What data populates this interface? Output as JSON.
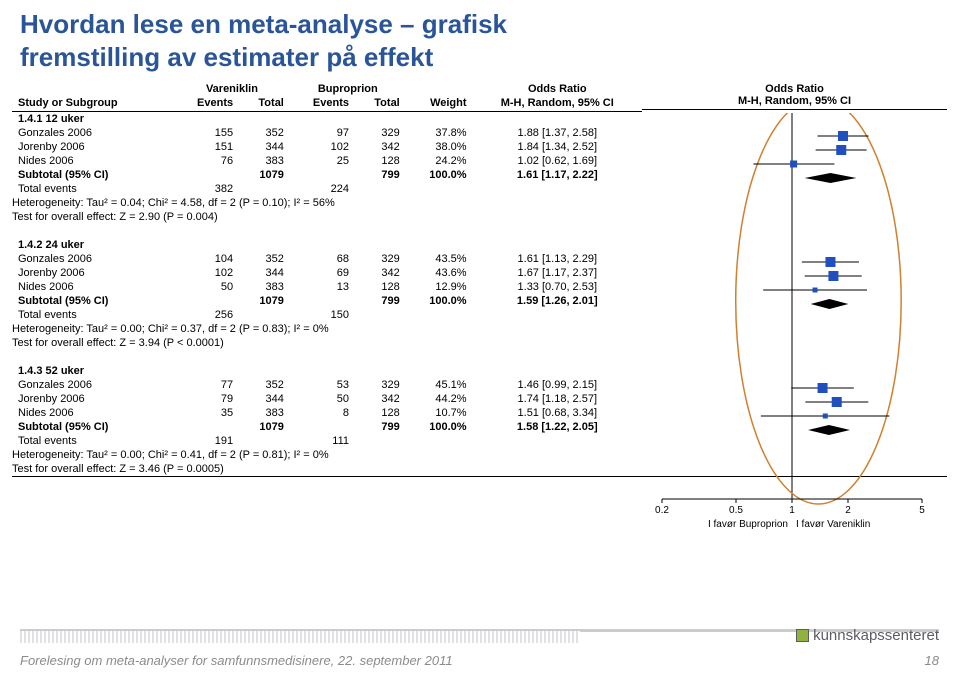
{
  "title_line1": "Hvordan lese en meta-analyse – grafisk",
  "title_line2": "fremstilling av estimater på effekt",
  "columns": {
    "study": "Study or Subgroup",
    "t1_events": "Events",
    "t1_total": "Total",
    "t2_events": "Events",
    "t2_total": "Total",
    "weight": "Weight",
    "or": "M-H, Random, 95% CI"
  },
  "arm1": "Vareniklin",
  "arm2": "Buproprion",
  "or_header": "Odds Ratio",
  "plot_header": "Odds Ratio",
  "plot_sub": "M-H, Random, 95% CI",
  "groups": [
    {
      "label": "1.4.1 12 uker",
      "rows": [
        {
          "study": "Gonzales 2006",
          "e1": "155",
          "t1": "352",
          "e2": "97",
          "t2": "329",
          "w": "37.8%",
          "or": "1.88 [1.37, 2.58]",
          "pt": 1.88,
          "lo": 1.37,
          "hi": 2.58,
          "sz": 10
        },
        {
          "study": "Jorenby 2006",
          "e1": "151",
          "t1": "344",
          "e2": "102",
          "t2": "342",
          "w": "38.0%",
          "or": "1.84 [1.34, 2.52]",
          "pt": 1.84,
          "lo": 1.34,
          "hi": 2.52,
          "sz": 10
        },
        {
          "study": "Nides 2006",
          "e1": "76",
          "t1": "383",
          "e2": "25",
          "t2": "128",
          "w": "24.2%",
          "or": "1.02 [0.62, 1.69]",
          "pt": 1.02,
          "lo": 0.62,
          "hi": 1.69,
          "sz": 7
        }
      ],
      "subtotal": {
        "t1": "1079",
        "t2": "799",
        "w": "100.0%",
        "or": "1.61 [1.17, 2.22]",
        "pt": 1.61,
        "lo": 1.17,
        "hi": 2.22
      },
      "total_events": {
        "e1": "382",
        "e2": "224"
      },
      "het": "Heterogeneity: Tau² = 0.04; Chi² = 4.58, df = 2 (P = 0.10); I² = 56%",
      "test": "Test for overall effect: Z = 2.90 (P = 0.004)"
    },
    {
      "label": "1.4.2 24 uker",
      "rows": [
        {
          "study": "Gonzales 2006",
          "e1": "104",
          "t1": "352",
          "e2": "68",
          "t2": "329",
          "w": "43.5%",
          "or": "1.61 [1.13, 2.29]",
          "pt": 1.61,
          "lo": 1.13,
          "hi": 2.29,
          "sz": 10
        },
        {
          "study": "Jorenby 2006",
          "e1": "102",
          "t1": "344",
          "e2": "69",
          "t2": "342",
          "w": "43.6%",
          "or": "1.67 [1.17, 2.37]",
          "pt": 1.67,
          "lo": 1.17,
          "hi": 2.37,
          "sz": 10
        },
        {
          "study": "Nides 2006",
          "e1": "50",
          "t1": "383",
          "e2": "13",
          "t2": "128",
          "w": "12.9%",
          "or": "1.33 [0.70, 2.53]",
          "pt": 1.33,
          "lo": 0.7,
          "hi": 2.53,
          "sz": 5
        }
      ],
      "subtotal": {
        "t1": "1079",
        "t2": "799",
        "w": "100.0%",
        "or": "1.59 [1.26, 2.01]",
        "pt": 1.59,
        "lo": 1.26,
        "hi": 2.01
      },
      "total_events": {
        "e1": "256",
        "e2": "150"
      },
      "het": "Heterogeneity: Tau² = 0.00; Chi² = 0.37, df = 2 (P = 0.83); I² = 0%",
      "test": "Test for overall effect: Z = 3.94 (P < 0.0001)"
    },
    {
      "label": "1.4.3 52 uker",
      "rows": [
        {
          "study": "Gonzales 2006",
          "e1": "77",
          "t1": "352",
          "e2": "53",
          "t2": "329",
          "w": "45.1%",
          "or": "1.46 [0.99, 2.15]",
          "pt": 1.46,
          "lo": 0.99,
          "hi": 2.15,
          "sz": 10
        },
        {
          "study": "Jorenby 2006",
          "e1": "79",
          "t1": "344",
          "e2": "50",
          "t2": "342",
          "w": "44.2%",
          "or": "1.74 [1.18, 2.57]",
          "pt": 1.74,
          "lo": 1.18,
          "hi": 2.57,
          "sz": 10
        },
        {
          "study": "Nides 2006",
          "e1": "35",
          "t1": "383",
          "e2": "8",
          "t2": "128",
          "w": "10.7%",
          "or": "1.51 [0.68, 3.34]",
          "pt": 1.51,
          "lo": 0.68,
          "hi": 3.34,
          "sz": 5
        }
      ],
      "subtotal": {
        "t1": "1079",
        "t2": "799",
        "w": "100.0%",
        "or": "1.58 [1.22, 2.05]",
        "pt": 1.58,
        "lo": 1.22,
        "hi": 2.05
      },
      "total_events": {
        "e1": "191",
        "e2": "111"
      },
      "het": "Heterogeneity: Tau² = 0.00; Chi² = 0.41, df = 2 (P = 0.81); I² = 0%",
      "test": "Test for overall effect: Z = 3.46 (P = 0.0005)"
    }
  ],
  "axis": {
    "ticks": [
      0.2,
      0.5,
      1,
      2,
      5
    ],
    "left_label": "I favør Buproprion",
    "right_label": "I favør Vareniklin",
    "unit_line_x": 1,
    "color_marker": "#2050c0",
    "color_line": "#000000",
    "ellipse_color": "#d08030"
  },
  "logo_text": "kunnskapssenteret",
  "footer_text": "Forelesing om meta-analyser for samfunnsmedisinere, 22. september 2011",
  "page_num": "18",
  "subtotal_label": "Subtotal (95% CI)",
  "total_events_label": "Total events"
}
